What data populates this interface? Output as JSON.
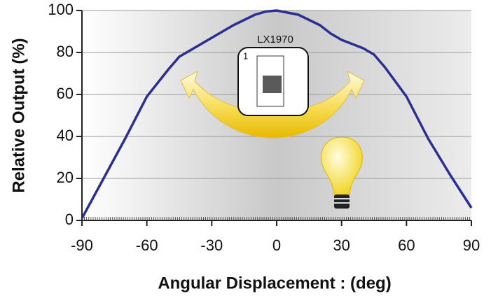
{
  "chart_data": {
    "type": "line",
    "xlabel": "Angular Displacement : (deg)",
    "ylabel": "Relative Output (%)",
    "annotations": [
      "LX1970",
      "1"
    ],
    "x": [
      -90,
      -80,
      -70,
      -60,
      -50,
      -45,
      -40,
      -30,
      -20,
      -10,
      -5,
      0,
      10,
      20,
      25,
      30,
      40,
      45,
      50,
      60,
      70,
      80,
      90
    ],
    "series": [
      {
        "color": "#2b2f8f",
        "values": [
          1,
          20,
          39,
          59,
          72,
          78,
          81,
          87,
          93,
          98,
          99.5,
          100,
          98,
          93,
          89,
          86,
          82,
          79,
          73,
          59,
          39,
          22,
          6
        ]
      }
    ],
    "xlim": [
      -90,
      90
    ],
    "xticks": [
      -90,
      -60,
      -30,
      0,
      30,
      60,
      90
    ],
    "ylim": [
      0,
      100
    ],
    "yticks": [
      0,
      20,
      40,
      60,
      80,
      100
    ],
    "grid": true
  }
}
